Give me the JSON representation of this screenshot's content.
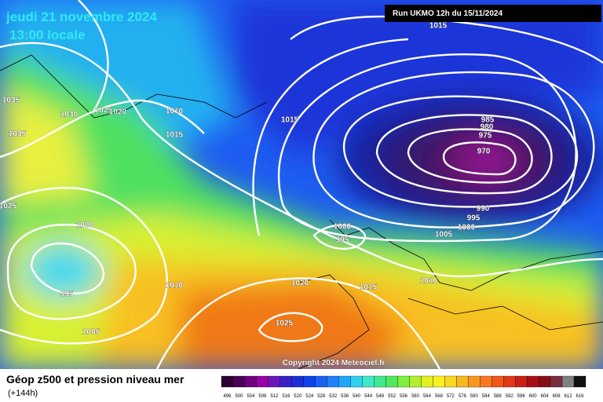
{
  "header": {
    "date": "jeudi 21 novembre 2024",
    "time": "13:00 locale"
  },
  "run_label": "Run UKMO 12h du 15/11/2024",
  "isobar_labels": [
    "1015",
    "1035",
    "1030",
    "1025",
    "1020",
    "1010",
    "1035",
    "1015",
    "1015",
    "985",
    "980",
    "975",
    "970",
    "1025",
    "1000",
    "1000",
    "995",
    "990",
    "995",
    "1000",
    "1005",
    "1020",
    "1015",
    "1010",
    "1010",
    "995",
    "1025",
    "1005"
  ],
  "copyright": "Copyright 2024 Meteociel.fr",
  "footer": {
    "title": "Géop z500 et pression niveau mer",
    "lead_time": "(+144h)"
  },
  "scale": {
    "values": [
      496,
      500,
      504,
      508,
      512,
      516,
      520,
      524,
      528,
      532,
      536,
      540,
      544,
      548,
      552,
      556,
      560,
      564,
      568,
      572,
      576,
      580,
      584,
      588,
      592,
      596,
      600,
      604,
      608,
      612,
      616
    ],
    "colors": [
      "#2b0033",
      "#4a0058",
      "#6e0080",
      "#9a00a8",
      "#6a18b8",
      "#3a20c8",
      "#1c2ed8",
      "#1040e8",
      "#1a60f0",
      "#2080f8",
      "#20a8f8",
      "#30d0f0",
      "#40e8c8",
      "#40e890",
      "#50e860",
      "#80f040",
      "#b0f030",
      "#e0f020",
      "#f8f020",
      "#f8d820",
      "#f8b820",
      "#f89820",
      "#f87820",
      "#f05818",
      "#e03818",
      "#c82018",
      "#a81018",
      "#881018",
      "#783040",
      "#808080",
      "#101010"
    ]
  }
}
